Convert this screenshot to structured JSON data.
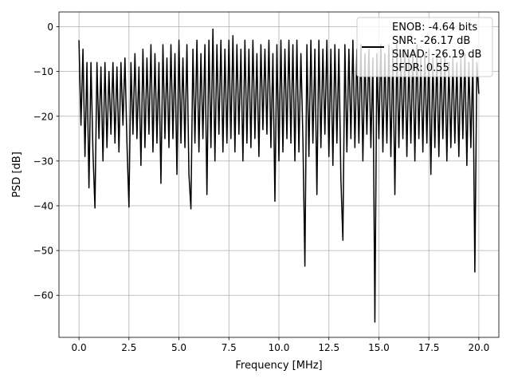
{
  "chart_data": {
    "type": "line",
    "title": "",
    "xlabel": "Frequency [MHz]",
    "ylabel": "PSD [dB]",
    "xlim": [
      -1.0,
      21.0
    ],
    "ylim": [
      -69.4,
      3.3
    ],
    "grid": true,
    "xticks": [
      0.0,
      2.5,
      5.0,
      7.5,
      10.0,
      12.5,
      15.0,
      17.5,
      20.0
    ],
    "xtick_labels": [
      "0.0",
      "2.5",
      "5.0",
      "7.5",
      "10.0",
      "12.5",
      "15.0",
      "17.5",
      "20.0"
    ],
    "yticks": [
      0,
      -10,
      -20,
      -30,
      -40,
      -50,
      -60
    ],
    "ytick_labels": [
      "0",
      "−10",
      "−20",
      "−30",
      "−40",
      "−50",
      "−60"
    ],
    "legend_position": "top-right",
    "legend": [
      "ENOB: -4.64 bits",
      "SNR: -26.17 dB",
      "SINAD: -26.19 dB",
      "SFDR: 0.55"
    ],
    "series": [
      {
        "name": "PSD",
        "color": "#000000",
        "x_start": 0.0,
        "x_step": 0.1,
        "values": [
          -3,
          -22,
          -5,
          -29,
          -8,
          -36,
          -8,
          -28,
          -40.5,
          -8,
          -25,
          -9,
          -30,
          -8,
          -27,
          -10,
          -24,
          -8,
          -26,
          -9,
          -28,
          -8,
          -22,
          -7,
          -26,
          -40.3,
          -8,
          -24,
          -6,
          -25,
          -9,
          -31,
          -5,
          -27,
          -7,
          -24,
          -4,
          -28,
          -6,
          -26,
          -8,
          -35,
          -4,
          -25,
          -7,
          -27,
          -4,
          -25,
          -6,
          -33,
          -3,
          -26,
          -7,
          -27,
          -4,
          -33,
          -40.7,
          -5,
          -26,
          -3,
          -28,
          -6,
          -25,
          -4,
          -37.5,
          -3,
          -27,
          -0.5,
          -30,
          -4,
          -24,
          -3,
          -28,
          -5,
          -26,
          -3,
          -25,
          -2,
          -28,
          -4,
          -24,
          -5,
          -30,
          -3,
          -26,
          -5,
          -27,
          -3,
          -25,
          -6,
          -29,
          -4,
          -23,
          -5,
          -24,
          -3,
          -27,
          -6,
          -39,
          -4,
          -30,
          -3,
          -28,
          -5,
          -25,
          -3,
          -26,
          -4,
          -30,
          -3,
          -28,
          -6,
          -25,
          -53.5,
          -4,
          -29,
          -3,
          -26,
          -5,
          -37.5,
          -3,
          -27,
          -5,
          -24,
          -3,
          -29,
          -5,
          -31,
          -4,
          -26,
          -5,
          -34,
          -47.7,
          -4,
          -28,
          -5,
          -25,
          -3,
          -27,
          -5,
          -26,
          -4,
          -30,
          -6,
          -24,
          -5,
          -27,
          -7,
          -66,
          -6,
          -25,
          -4,
          -28,
          -6,
          -26,
          -4,
          -29,
          -5,
          -37.5,
          -4,
          -27,
          -6,
          -25,
          -5,
          -29,
          -7,
          -26,
          -5,
          -30,
          -4,
          -25,
          -7,
          -28,
          -6,
          -26,
          -5,
          -33,
          -7,
          -27,
          -6,
          -29,
          -7,
          -25,
          -6,
          -30,
          -8,
          -27,
          -7,
          -26,
          -8,
          -29,
          -7,
          -25,
          -6,
          -31,
          -8,
          -27,
          -7,
          -54.8,
          -8,
          -15
        ]
      }
    ]
  }
}
